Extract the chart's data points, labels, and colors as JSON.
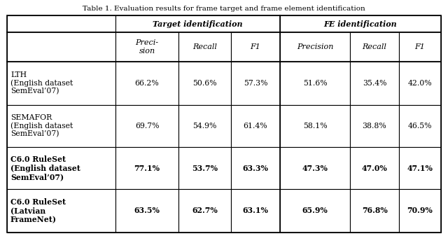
{
  "title_bold": "Table 1.",
  "title_normal": " Evaluation results for frame target and frame element identification",
  "col_groups": [
    {
      "label": "Target identification"
    },
    {
      "label": "FE identification"
    }
  ],
  "sub_headers": [
    "Preci-\nsion",
    "Recall",
    "F1",
    "Precision",
    "Recall",
    "F1"
  ],
  "row_labels": [
    "LTH\n(English dataset\nSemEval’07)",
    "SEMAFOR\n(English dataset\nSemEval’07)",
    "C6.0 RuleSet\n(English dataset\nSemEval’07)",
    "C6.0 RuleSet\n(Latvian\nFrameNet)"
  ],
  "data": [
    [
      "66.2%",
      "50.6%",
      "57.3%",
      "51.6%",
      "35.4%",
      "42.0%"
    ],
    [
      "69.7%",
      "54.9%",
      "61.4%",
      "58.1%",
      "38.8%",
      "46.5%"
    ],
    [
      "77.1%",
      "53.7%",
      "63.3%",
      "47.3%",
      "47.0%",
      "47.1%"
    ],
    [
      "63.5%",
      "62.7%",
      "63.1%",
      "65.9%",
      "76.8%",
      "70.9%"
    ]
  ],
  "bold_rows": [
    2,
    3
  ],
  "bg_color": "#ffffff",
  "title_fontsize": 7.5,
  "header_fontsize": 8.0,
  "cell_fontsize": 7.8,
  "label_fontsize": 7.8
}
